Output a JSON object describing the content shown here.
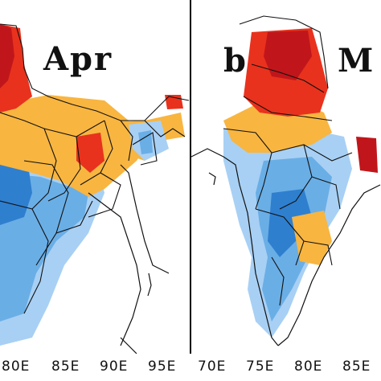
{
  "left_panel": {
    "month": "Apr",
    "x_ticks": [
      "80E",
      "85E",
      "90E",
      "95E"
    ]
  },
  "right_panel": {
    "letter": "b",
    "month": "M",
    "x_ticks": [
      "70E",
      "75E",
      "80E",
      "85E"
    ]
  },
  "colors": {
    "dark_red": "#c0161b",
    "red": "#e8321d",
    "orange": "#f8b540",
    "light_blue": "#a8d0f4",
    "mid_blue": "#6aaee6",
    "blue": "#2f7fcf",
    "border": "#111111"
  }
}
